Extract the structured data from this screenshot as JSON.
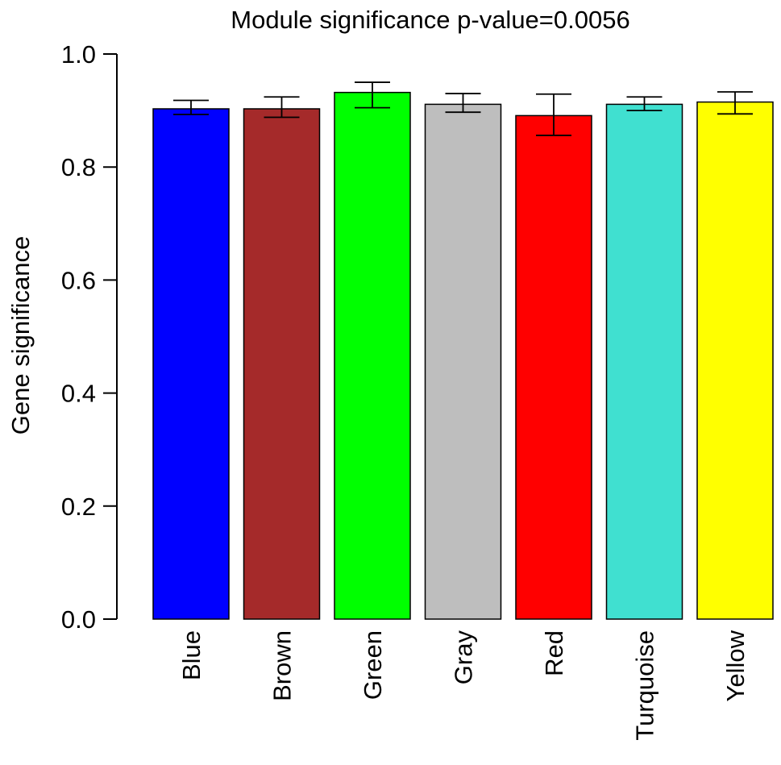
{
  "chart_data": {
    "type": "bar",
    "title": "Module significance p-value=0.0056",
    "ylabel": "Gene significance",
    "xlabel": "",
    "ylim": [
      0,
      1
    ],
    "yticks": [
      0.0,
      0.2,
      0.4,
      0.6,
      0.8,
      1.0
    ],
    "ytick_labels": [
      "0.0",
      "0.2",
      "0.4",
      "0.6",
      "0.8",
      "1.0"
    ],
    "categories": [
      "Blue",
      "Brown",
      "Green",
      "Gray",
      "Red",
      "Turquoise",
      "Yellow"
    ],
    "values": [
      0.903,
      0.903,
      0.932,
      0.911,
      0.891,
      0.911,
      0.915
    ],
    "error_bars": [
      {
        "low": 0.893,
        "high": 0.918
      },
      {
        "low": 0.888,
        "high": 0.924
      },
      {
        "low": 0.905,
        "high": 0.95
      },
      {
        "low": 0.897,
        "high": 0.93
      },
      {
        "low": 0.856,
        "high": 0.929
      },
      {
        "low": 0.9,
        "high": 0.924
      },
      {
        "low": 0.894,
        "high": 0.933
      }
    ],
    "colors": [
      "#0000ff",
      "#a52a2a",
      "#00ff00",
      "#bebebe",
      "#ff0000",
      "#40e0d0",
      "#ffff00"
    ],
    "grid": false,
    "legend": "none"
  }
}
